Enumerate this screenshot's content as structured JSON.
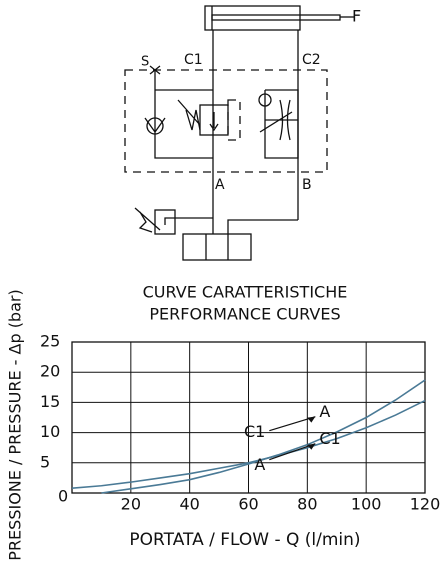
{
  "diagram": {
    "labels": [
      "F",
      "S",
      "C1",
      "C2",
      "A",
      "B"
    ]
  },
  "chart_data": {
    "type": "line",
    "title": [
      "CURVE CARATTERISTICHE",
      "PERFORMANCE CURVES"
    ],
    "xlabel": "PORTATA / FLOW - Q (l/min)",
    "ylabel": "PRESSIONE / PRESSURE - Δp (bar)",
    "x": [
      0,
      10,
      20,
      30,
      40,
      50,
      60,
      70,
      80,
      90,
      100,
      110,
      120
    ],
    "xlim": [
      0,
      120
    ],
    "ylim": [
      0,
      25
    ],
    "xticks": [
      20,
      40,
      60,
      80,
      100,
      120
    ],
    "yticks": [
      0,
      5,
      10,
      15,
      20,
      25
    ],
    "grid": true,
    "series": [
      {
        "from": "C1",
        "to": "A",
        "color": "#4a7a96",
        "values": [
          null,
          0,
          0.7,
          1.4,
          2.2,
          3.4,
          4.8,
          6.3,
          8,
          10.1,
          12.5,
          15.4,
          18.7
        ]
      },
      {
        "from": "A",
        "to": "C1",
        "color": "#4a7a96",
        "values": [
          0.8,
          1.2,
          1.8,
          2.5,
          3.2,
          4.1,
          5,
          6.2,
          7.5,
          9,
          10.8,
          12.9,
          15.3
        ]
      }
    ]
  }
}
